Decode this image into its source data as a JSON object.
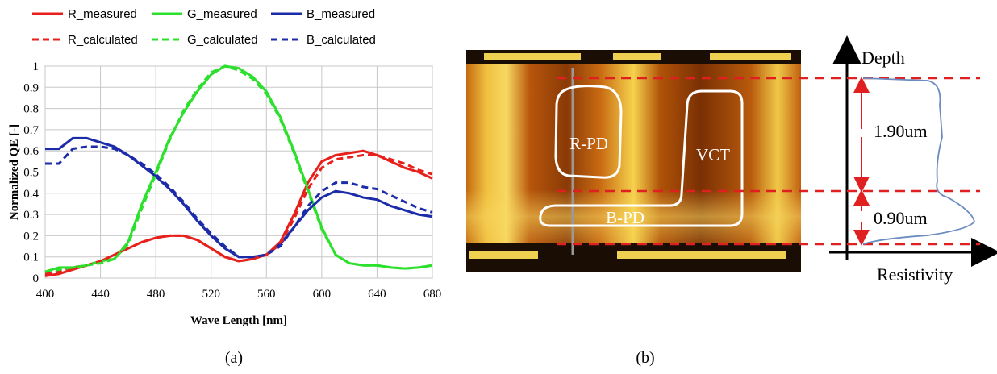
{
  "chart_data": {
    "type": "line",
    "x": [
      400,
      410,
      420,
      430,
      440,
      450,
      460,
      470,
      480,
      490,
      500,
      510,
      520,
      530,
      540,
      550,
      560,
      570,
      580,
      590,
      600,
      610,
      620,
      630,
      640,
      650,
      660,
      670,
      680
    ],
    "xlim": [
      400,
      680
    ],
    "xticks": [
      400,
      440,
      480,
      520,
      560,
      600,
      640,
      680
    ],
    "ylim": [
      0,
      1
    ],
    "yticks": [
      0,
      0.1,
      0.2,
      0.3,
      0.4,
      0.5,
      0.6,
      0.7,
      0.8,
      0.9,
      1
    ],
    "xlabel": "Wave Length [nm]",
    "ylabel": "Normalized QE [-]",
    "grid": true,
    "legend": "top",
    "series": [
      {
        "name": "R_measured",
        "color": "#e8201c",
        "dashed": false,
        "values": [
          0.01,
          0.02,
          0.04,
          0.06,
          0.08,
          0.11,
          0.14,
          0.17,
          0.19,
          0.2,
          0.2,
          0.18,
          0.14,
          0.1,
          0.08,
          0.09,
          0.11,
          0.17,
          0.3,
          0.45,
          0.55,
          0.58,
          0.59,
          0.6,
          0.58,
          0.55,
          0.52,
          0.5,
          0.47
        ]
      },
      {
        "name": "G_measured",
        "color": "#2ee02e",
        "dashed": false,
        "values": [
          0.03,
          0.05,
          0.05,
          0.06,
          0.08,
          0.09,
          0.17,
          0.35,
          0.5,
          0.66,
          0.78,
          0.88,
          0.96,
          1.0,
          0.99,
          0.95,
          0.88,
          0.76,
          0.6,
          0.42,
          0.24,
          0.11,
          0.07,
          0.06,
          0.06,
          0.05,
          0.045,
          0.05,
          0.06
        ]
      },
      {
        "name": "B_measured",
        "color": "#1c2ca8",
        "dashed": false,
        "values": [
          0.61,
          0.61,
          0.66,
          0.66,
          0.64,
          0.62,
          0.58,
          0.53,
          0.48,
          0.42,
          0.35,
          0.27,
          0.2,
          0.14,
          0.1,
          0.1,
          0.11,
          0.16,
          0.24,
          0.32,
          0.38,
          0.41,
          0.4,
          0.38,
          0.37,
          0.34,
          0.32,
          0.3,
          0.29
        ]
      },
      {
        "name": "R_calculated",
        "color": "#e8201c",
        "dashed": true,
        "values": [
          0.02,
          0.03,
          0.05,
          0.06,
          0.08,
          0.11,
          0.14,
          0.17,
          0.19,
          0.2,
          0.2,
          0.18,
          0.14,
          0.1,
          0.08,
          0.09,
          0.11,
          0.16,
          0.28,
          0.42,
          0.52,
          0.56,
          0.57,
          0.58,
          0.58,
          0.56,
          0.54,
          0.51,
          0.49
        ]
      },
      {
        "name": "G_calculated",
        "color": "#2ee02e",
        "dashed": true,
        "values": [
          0.03,
          0.04,
          0.05,
          0.06,
          0.07,
          0.09,
          0.16,
          0.33,
          0.49,
          0.65,
          0.79,
          0.89,
          0.97,
          1.0,
          0.98,
          0.94,
          0.87,
          0.75,
          0.59,
          0.41,
          0.23,
          0.11,
          0.07,
          0.06,
          0.06,
          0.05,
          0.045,
          0.05,
          0.06
        ]
      },
      {
        "name": "B_calculated",
        "color": "#1c2ca8",
        "dashed": true,
        "values": [
          0.54,
          0.54,
          0.61,
          0.62,
          0.62,
          0.61,
          0.58,
          0.54,
          0.49,
          0.43,
          0.36,
          0.28,
          0.21,
          0.15,
          0.1,
          0.1,
          0.11,
          0.15,
          0.24,
          0.34,
          0.41,
          0.45,
          0.45,
          0.43,
          0.42,
          0.39,
          0.36,
          0.33,
          0.31
        ]
      }
    ]
  },
  "captions": [
    "(a)",
    "(b)"
  ],
  "panel_b": {
    "regions": [
      "R-PD",
      "VCT",
      "B-PD"
    ],
    "axis_y": "Depth",
    "axis_x": "Resistivity",
    "dimensions": [
      "1.90um",
      "0.90um"
    ]
  }
}
